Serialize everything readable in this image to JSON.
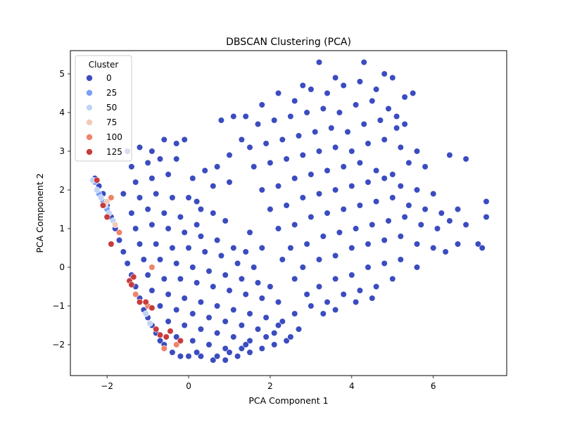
{
  "chart_data": {
    "type": "scatter",
    "title": "DBSCAN Clustering (PCA)",
    "xlabel": "PCA Component 1",
    "ylabel": "PCA Component 2",
    "xlim": [
      -2.9,
      7.8
    ],
    "ylim": [
      -2.8,
      5.6
    ],
    "xticks": [
      -2,
      0,
      2,
      4,
      6
    ],
    "yticks": [
      -2,
      -1,
      0,
      1,
      2,
      3,
      4,
      5
    ],
    "grid": false,
    "legend": {
      "title": "Cluster",
      "placement": "top-left",
      "entries": [
        {
          "label": "0",
          "color": "#3b4cc0"
        },
        {
          "label": "25",
          "color": "#7b9ff9"
        },
        {
          "label": "50",
          "color": "#c0d4f5"
        },
        {
          "label": "75",
          "color": "#f2cbb7"
        },
        {
          "label": "100",
          "color": "#ee8468"
        },
        {
          "label": "125",
          "color": "#c83c3e"
        }
      ]
    },
    "series": [
      {
        "cluster": "0",
        "color": "#3b4cc0",
        "points": [
          [
            -2.3,
            2.3
          ],
          [
            -2.2,
            2.1
          ],
          [
            -2.1,
            1.9
          ],
          [
            -2.0,
            1.6
          ],
          [
            -1.9,
            1.3
          ],
          [
            -1.8,
            1.0
          ],
          [
            -1.7,
            0.7
          ],
          [
            -1.6,
            0.4
          ],
          [
            -1.5,
            0.1
          ],
          [
            -1.4,
            -0.2
          ],
          [
            -1.3,
            -0.5
          ],
          [
            -1.2,
            -0.8
          ],
          [
            -1.1,
            -1.1
          ],
          [
            -1.0,
            -1.3
          ],
          [
            -0.9,
            -1.5
          ],
          [
            -0.8,
            -1.7
          ],
          [
            -0.7,
            -1.9
          ],
          [
            -0.6,
            -2.0
          ],
          [
            -0.4,
            -2.2
          ],
          [
            -0.2,
            -2.3
          ],
          [
            0.0,
            -2.3
          ],
          [
            0.3,
            -2.3
          ],
          [
            0.6,
            -2.4
          ],
          [
            0.9,
            -2.4
          ],
          [
            1.2,
            -2.3
          ],
          [
            1.5,
            -2.2
          ],
          [
            1.8,
            -2.1
          ],
          [
            2.1,
            -2.0
          ],
          [
            2.4,
            -1.9
          ],
          [
            2.7,
            -1.6
          ],
          [
            -1.5,
            3.0
          ],
          [
            -1.2,
            3.1
          ],
          [
            -0.9,
            3.0
          ],
          [
            -0.6,
            3.3
          ],
          [
            -0.3,
            3.2
          ],
          [
            -0.1,
            3.3
          ],
          [
            -1.4,
            2.6
          ],
          [
            -1.0,
            2.7
          ],
          [
            -0.7,
            2.8
          ],
          [
            -0.3,
            2.8
          ],
          [
            0.1,
            2.3
          ],
          [
            0.4,
            2.5
          ],
          [
            0.7,
            2.6
          ],
          [
            1.0,
            2.2
          ],
          [
            -1.3,
            2.2
          ],
          [
            -0.9,
            2.3
          ],
          [
            -0.5,
            2.4
          ],
          [
            -1.6,
            1.9
          ],
          [
            -1.2,
            1.8
          ],
          [
            -0.8,
            1.9
          ],
          [
            -0.4,
            1.8
          ],
          [
            0.0,
            1.8
          ],
          [
            0.3,
            1.5
          ],
          [
            0.6,
            1.4
          ],
          [
            0.9,
            1.2
          ],
          [
            -1.4,
            1.4
          ],
          [
            -1.0,
            1.5
          ],
          [
            -0.6,
            1.4
          ],
          [
            -0.2,
            1.3
          ],
          [
            0.2,
            1.1
          ],
          [
            -1.3,
            1.0
          ],
          [
            -0.9,
            1.1
          ],
          [
            -0.5,
            1.0
          ],
          [
            -0.1,
            0.9
          ],
          [
            0.3,
            0.8
          ],
          [
            0.7,
            0.7
          ],
          [
            1.1,
            0.5
          ],
          [
            1.4,
            0.4
          ],
          [
            -1.2,
            0.6
          ],
          [
            -0.8,
            0.6
          ],
          [
            -0.4,
            0.5
          ],
          [
            0.0,
            0.5
          ],
          [
            0.4,
            0.4
          ],
          [
            0.8,
            0.3
          ],
          [
            1.2,
            0.1
          ],
          [
            1.6,
            0.0
          ],
          [
            -1.1,
            0.2
          ],
          [
            -0.7,
            0.2
          ],
          [
            -0.3,
            0.1
          ],
          [
            0.1,
            0.0
          ],
          [
            0.5,
            -0.1
          ],
          [
            0.9,
            -0.2
          ],
          [
            1.3,
            -0.3
          ],
          [
            1.7,
            -0.4
          ],
          [
            2.0,
            -0.5
          ],
          [
            -1.0,
            -0.2
          ],
          [
            -0.6,
            -0.3
          ],
          [
            -0.2,
            -0.3
          ],
          [
            0.2,
            -0.4
          ],
          [
            0.6,
            -0.5
          ],
          [
            1.0,
            -0.6
          ],
          [
            1.4,
            -0.7
          ],
          [
            1.8,
            -0.8
          ],
          [
            2.2,
            -0.9
          ],
          [
            -0.9,
            -0.6
          ],
          [
            -0.5,
            -0.7
          ],
          [
            -0.1,
            -0.8
          ],
          [
            0.3,
            -0.9
          ],
          [
            0.7,
            -1.0
          ],
          [
            1.1,
            -1.1
          ],
          [
            1.5,
            -1.2
          ],
          [
            1.9,
            -1.3
          ],
          [
            2.3,
            -1.4
          ],
          [
            2.6,
            -1.2
          ],
          [
            -0.7,
            -1.0
          ],
          [
            -0.3,
            -1.1
          ],
          [
            0.1,
            -1.2
          ],
          [
            0.5,
            -1.3
          ],
          [
            0.9,
            -1.4
          ],
          [
            1.3,
            -1.5
          ],
          [
            1.7,
            -1.6
          ],
          [
            2.1,
            -1.7
          ],
          [
            -0.5,
            -1.4
          ],
          [
            -0.1,
            -1.5
          ],
          [
            0.3,
            -1.6
          ],
          [
            0.7,
            -1.7
          ],
          [
            1.1,
            -1.8
          ],
          [
            1.5,
            -1.9
          ],
          [
            1.9,
            -1.8
          ],
          [
            -0.3,
            -1.8
          ],
          [
            0.1,
            -1.9
          ],
          [
            0.5,
            -2.0
          ],
          [
            0.9,
            -2.1
          ],
          [
            1.3,
            -2.1
          ],
          [
            0.2,
            -2.2
          ],
          [
            0.7,
            -2.3
          ],
          [
            1.0,
            -2.2
          ],
          [
            1.4,
            -2.0
          ],
          [
            3.0,
            -1.0
          ],
          [
            3.4,
            -0.9
          ],
          [
            3.8,
            -0.7
          ],
          [
            4.2,
            -0.6
          ],
          [
            4.6,
            -0.5
          ],
          [
            5.0,
            -0.3
          ],
          [
            3.2,
            -0.5
          ],
          [
            3.6,
            -0.3
          ],
          [
            4.0,
            -0.2
          ],
          [
            4.4,
            0.0
          ],
          [
            4.8,
            0.1
          ],
          [
            5.2,
            0.2
          ],
          [
            5.6,
            0.0
          ],
          [
            2.8,
            0.0
          ],
          [
            3.2,
            0.2
          ],
          [
            3.6,
            0.3
          ],
          [
            4.0,
            0.5
          ],
          [
            4.4,
            0.6
          ],
          [
            4.8,
            0.7
          ],
          [
            5.2,
            0.8
          ],
          [
            5.6,
            0.6
          ],
          [
            6.0,
            0.5
          ],
          [
            6.3,
            0.4
          ],
          [
            6.6,
            0.6
          ],
          [
            7.1,
            0.6
          ],
          [
            7.2,
            0.5
          ],
          [
            2.5,
            0.5
          ],
          [
            2.9,
            0.6
          ],
          [
            3.3,
            0.8
          ],
          [
            3.7,
            0.9
          ],
          [
            4.1,
            1.0
          ],
          [
            4.5,
            1.1
          ],
          [
            4.9,
            1.2
          ],
          [
            5.3,
            1.3
          ],
          [
            5.7,
            1.1
          ],
          [
            6.1,
            1.0
          ],
          [
            6.4,
            1.2
          ],
          [
            6.8,
            1.1
          ],
          [
            7.3,
            1.3
          ],
          [
            7.3,
            1.7
          ],
          [
            2.2,
            1.0
          ],
          [
            2.6,
            1.1
          ],
          [
            3.0,
            1.3
          ],
          [
            3.4,
            1.4
          ],
          [
            3.8,
            1.5
          ],
          [
            4.2,
            1.6
          ],
          [
            4.6,
            1.7
          ],
          [
            5.0,
            1.8
          ],
          [
            5.4,
            1.6
          ],
          [
            5.8,
            1.5
          ],
          [
            6.2,
            1.4
          ],
          [
            6.6,
            1.5
          ],
          [
            2.0,
            1.5
          ],
          [
            2.4,
            1.6
          ],
          [
            2.8,
            1.8
          ],
          [
            3.2,
            1.9
          ],
          [
            3.6,
            2.0
          ],
          [
            4.0,
            2.1
          ],
          [
            4.4,
            2.2
          ],
          [
            4.8,
            2.3
          ],
          [
            5.2,
            2.1
          ],
          [
            5.6,
            2.0
          ],
          [
            6.0,
            1.9
          ],
          [
            1.8,
            2.0
          ],
          [
            2.2,
            2.1
          ],
          [
            2.6,
            2.3
          ],
          [
            3.0,
            2.4
          ],
          [
            3.4,
            2.5
          ],
          [
            3.8,
            2.6
          ],
          [
            4.2,
            2.7
          ],
          [
            4.6,
            2.5
          ],
          [
            5.0,
            2.4
          ],
          [
            5.4,
            2.7
          ],
          [
            5.8,
            2.6
          ],
          [
            6.4,
            2.9
          ],
          [
            6.8,
            2.8
          ],
          [
            1.6,
            2.6
          ],
          [
            2.0,
            2.7
          ],
          [
            2.4,
            2.8
          ],
          [
            2.8,
            2.9
          ],
          [
            3.2,
            3.0
          ],
          [
            3.6,
            3.1
          ],
          [
            4.0,
            3.0
          ],
          [
            4.4,
            3.2
          ],
          [
            4.8,
            3.3
          ],
          [
            5.2,
            3.1
          ],
          [
            5.6,
            3.0
          ],
          [
            1.5,
            3.1
          ],
          [
            1.9,
            3.2
          ],
          [
            2.3,
            3.3
          ],
          [
            2.7,
            3.4
          ],
          [
            3.1,
            3.5
          ],
          [
            3.5,
            3.6
          ],
          [
            3.9,
            3.5
          ],
          [
            4.3,
            3.7
          ],
          [
            4.7,
            3.8
          ],
          [
            5.1,
            3.6
          ],
          [
            1.7,
            3.7
          ],
          [
            2.1,
            3.8
          ],
          [
            2.5,
            3.9
          ],
          [
            2.9,
            4.0
          ],
          [
            3.3,
            4.1
          ],
          [
            3.7,
            4.0
          ],
          [
            4.1,
            4.2
          ],
          [
            4.5,
            4.3
          ],
          [
            4.9,
            4.1
          ],
          [
            5.3,
            4.4
          ],
          [
            1.4,
            3.9
          ],
          [
            1.8,
            4.2
          ],
          [
            2.2,
            4.5
          ],
          [
            2.6,
            4.3
          ],
          [
            3.0,
            4.6
          ],
          [
            3.4,
            4.5
          ],
          [
            3.8,
            4.7
          ],
          [
            4.2,
            4.8
          ],
          [
            4.6,
            4.6
          ],
          [
            5.0,
            4.9
          ],
          [
            5.5,
            4.5
          ],
          [
            5.1,
            3.9
          ],
          [
            5.3,
            3.7
          ],
          [
            3.2,
            5.3
          ],
          [
            4.3,
            5.3
          ],
          [
            4.8,
            5.0
          ],
          [
            3.6,
            4.9
          ],
          [
            2.8,
            4.7
          ],
          [
            1.1,
            3.9
          ],
          [
            0.8,
            3.8
          ],
          [
            1.3,
            3.3
          ],
          [
            1.0,
            2.9
          ],
          [
            0.6,
            2.1
          ],
          [
            0.2,
            1.7
          ],
          [
            1.5,
            0.9
          ],
          [
            1.8,
            0.5
          ],
          [
            2.3,
            0.2
          ],
          [
            2.6,
            -0.3
          ],
          [
            2.9,
            -0.7
          ],
          [
            3.3,
            -1.2
          ],
          [
            2.5,
            -1.8
          ],
          [
            2.2,
            -1.5
          ],
          [
            3.6,
            -1.1
          ],
          [
            4.1,
            -0.9
          ],
          [
            4.5,
            -0.8
          ]
        ]
      },
      {
        "cluster": "25",
        "color": "#7b9ff9",
        "points": [
          [
            -2.3,
            2.2
          ],
          [
            -2.2,
            1.9
          ],
          [
            -2.1,
            1.7
          ],
          [
            -2.0,
            1.5
          ]
        ]
      },
      {
        "cluster": "50",
        "color": "#c0d4f5",
        "points": [
          [
            -2.35,
            2.25
          ],
          [
            -2.25,
            2.0
          ],
          [
            -2.15,
            1.8
          ],
          [
            -2.05,
            1.6
          ],
          [
            -1.95,
            1.4
          ],
          [
            -1.85,
            1.2
          ],
          [
            -1.05,
            -1.2
          ],
          [
            -0.95,
            -1.45
          ]
        ]
      },
      {
        "cluster": "75",
        "color": "#f2cbb7",
        "points": [
          [
            -2.0,
            1.7
          ],
          [
            -1.8,
            1.1
          ]
        ]
      },
      {
        "cluster": "100",
        "color": "#ee8468",
        "points": [
          [
            -1.9,
            1.8
          ],
          [
            -1.7,
            0.9
          ],
          [
            -1.3,
            -0.7
          ],
          [
            -1.0,
            -1.0
          ],
          [
            -0.9,
            0.0
          ],
          [
            -0.6,
            -2.1
          ],
          [
            -0.3,
            -2.0
          ]
        ]
      },
      {
        "cluster": "125",
        "color": "#c83c3e",
        "points": [
          [
            -2.25,
            2.25
          ],
          [
            -2.1,
            1.6
          ],
          [
            -2.0,
            1.3
          ],
          [
            -1.9,
            0.6
          ],
          [
            -1.45,
            -0.35
          ],
          [
            -1.4,
            -0.45
          ],
          [
            -1.35,
            -0.25
          ],
          [
            -1.2,
            -0.9
          ],
          [
            -1.05,
            -0.9
          ],
          [
            -0.9,
            -1.05
          ],
          [
            -0.8,
            -1.6
          ],
          [
            -0.7,
            -1.75
          ],
          [
            -0.55,
            -1.8
          ],
          [
            -0.45,
            -1.65
          ],
          [
            -0.2,
            -1.9
          ]
        ]
      }
    ]
  }
}
